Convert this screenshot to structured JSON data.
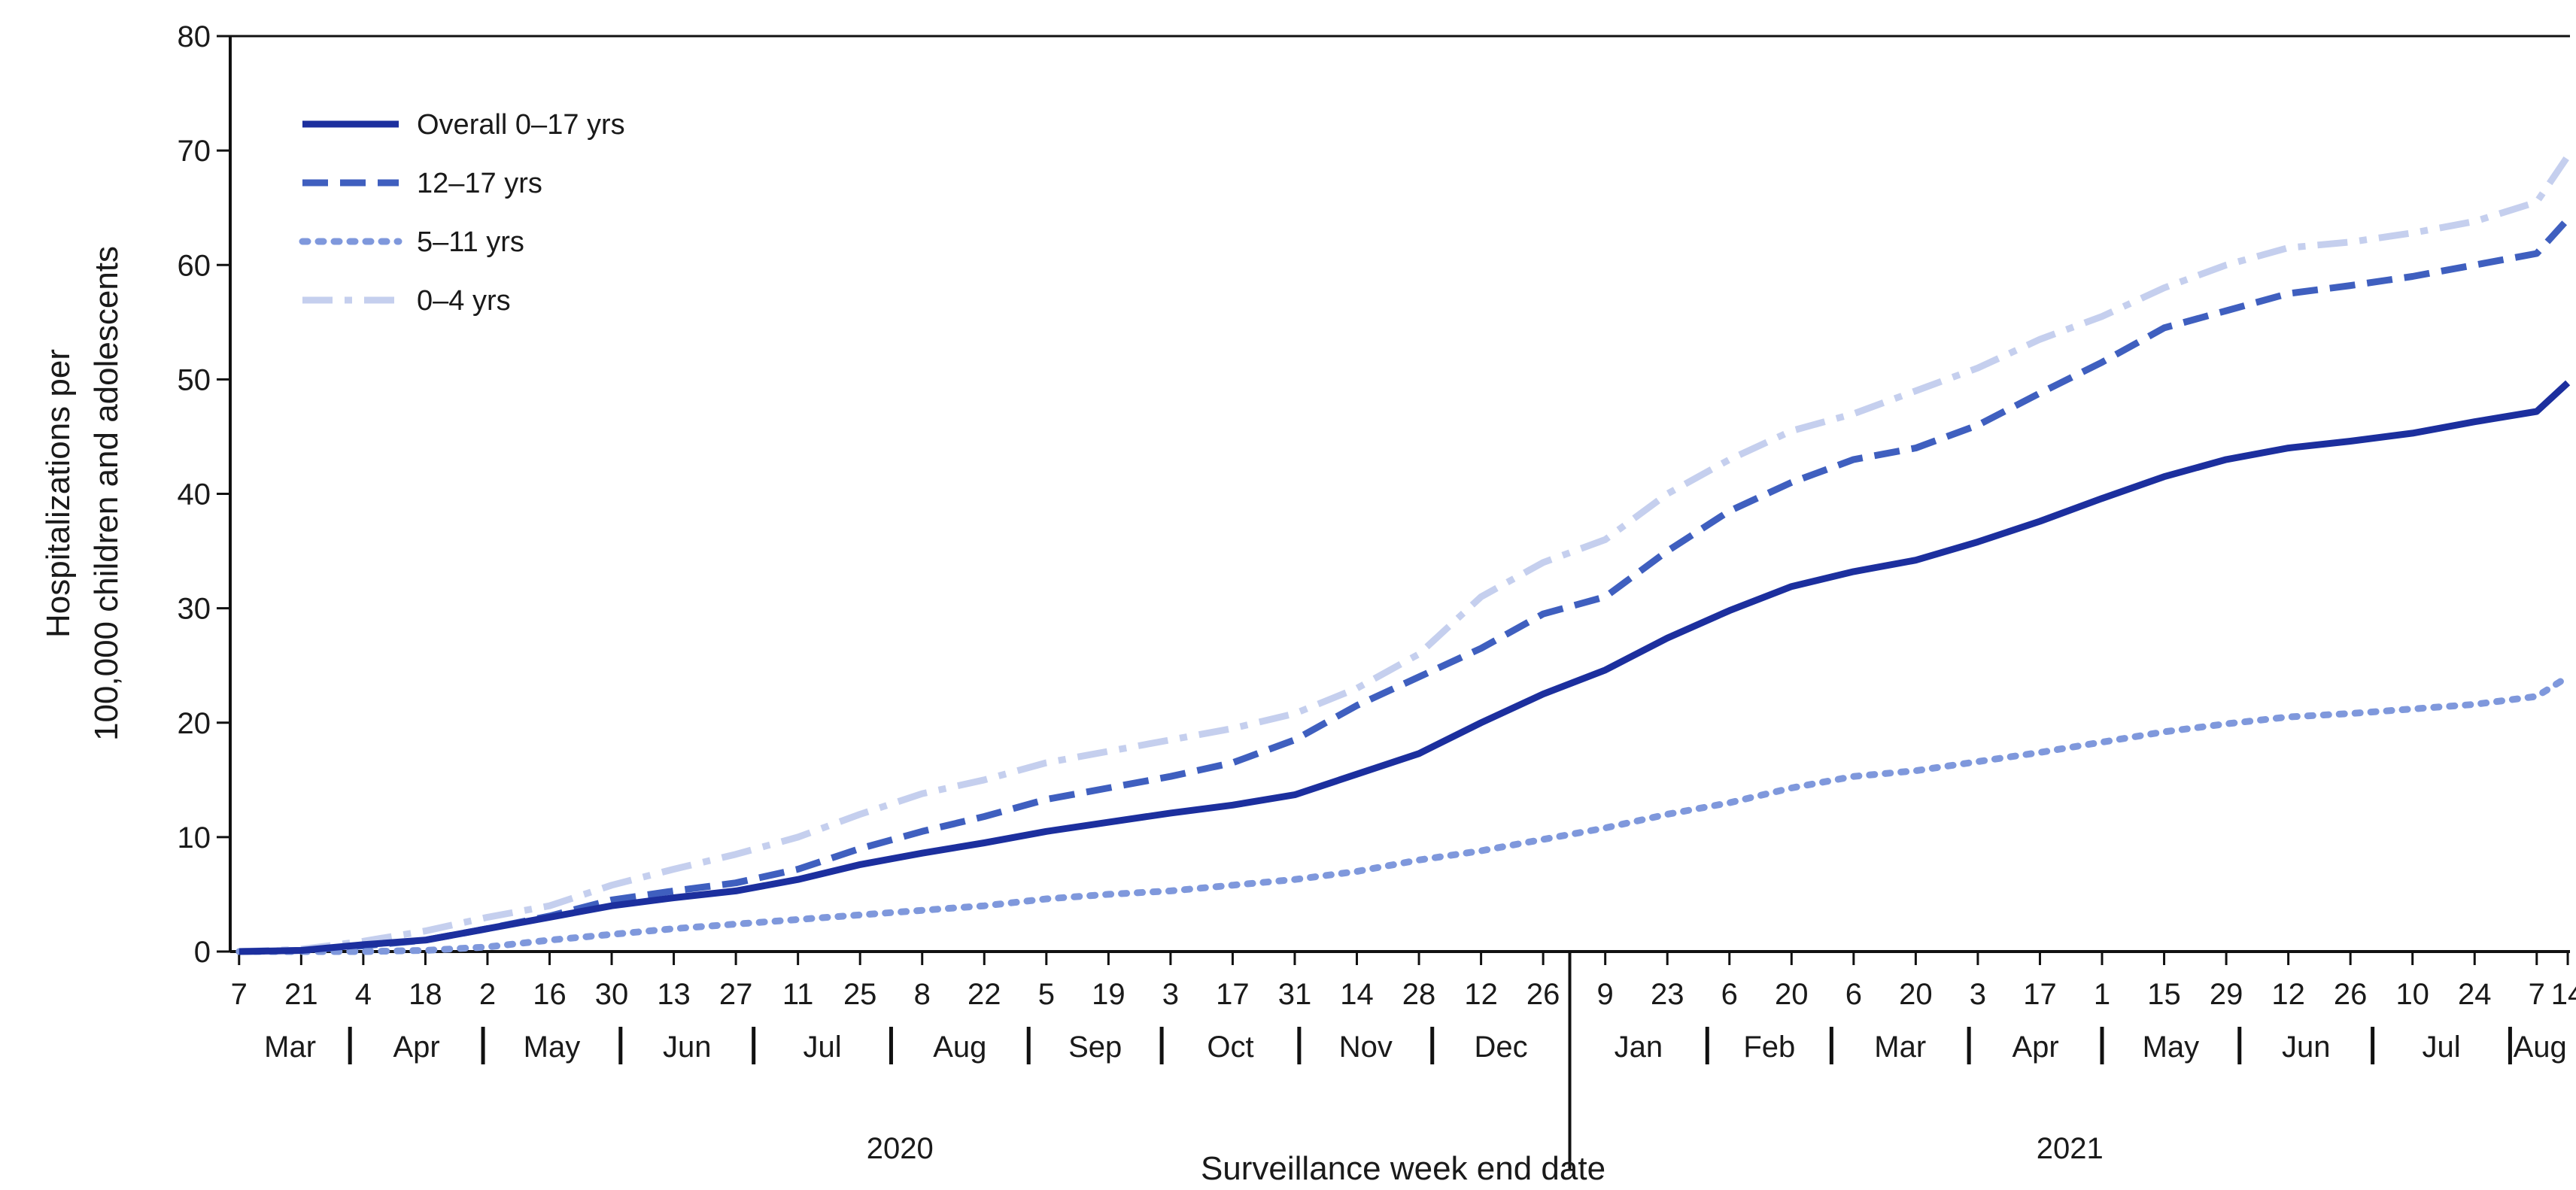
{
  "chart_data": {
    "type": "line",
    "title": "",
    "xlabel": "Surveillance week end date",
    "ylabel_lines": [
      "Hospitalizations per",
      "100,000 children and adolescents"
    ],
    "ylim": [
      0,
      80
    ],
    "yticks": [
      0,
      10,
      20,
      30,
      40,
      50,
      60,
      70,
      80
    ],
    "grid": false,
    "legend_placement": "top-left",
    "x_dates": [
      "2020-03-07",
      "2020-03-21",
      "2020-04-04",
      "2020-04-18",
      "2020-05-02",
      "2020-05-16",
      "2020-05-30",
      "2020-06-13",
      "2020-06-27",
      "2020-07-11",
      "2020-07-25",
      "2020-08-08",
      "2020-08-22",
      "2020-09-05",
      "2020-09-19",
      "2020-10-03",
      "2020-10-17",
      "2020-10-31",
      "2020-11-14",
      "2020-11-28",
      "2020-12-12",
      "2020-12-26",
      "2021-01-09",
      "2021-01-23",
      "2021-02-06",
      "2021-02-20",
      "2021-03-06",
      "2021-03-20",
      "2021-04-03",
      "2021-04-17",
      "2021-05-01",
      "2021-05-15",
      "2021-05-29",
      "2021-06-12",
      "2021-06-26",
      "2021-07-10",
      "2021-07-24",
      "2021-08-07",
      "2021-08-14"
    ],
    "tick_day_labels": [
      "7",
      "21",
      "4",
      "18",
      "2",
      "16",
      "30",
      "13",
      "27",
      "11",
      "25",
      "8",
      "22",
      "5",
      "19",
      "3",
      "17",
      "31",
      "14",
      "28",
      "12",
      "26",
      "9",
      "23",
      "6",
      "20",
      "6",
      "20",
      "3",
      "17",
      "1",
      "15",
      "29",
      "12",
      "26",
      "10",
      "24",
      "7",
      "14"
    ],
    "months": [
      {
        "label": "Mar",
        "start": "2020-03-01",
        "end": "2020-03-31"
      },
      {
        "label": "Apr",
        "start": "2020-04-01",
        "end": "2020-04-30"
      },
      {
        "label": "May",
        "start": "2020-05-01",
        "end": "2020-05-31"
      },
      {
        "label": "Jun",
        "start": "2020-06-01",
        "end": "2020-06-30"
      },
      {
        "label": "Jul",
        "start": "2020-07-01",
        "end": "2020-07-31"
      },
      {
        "label": "Aug",
        "start": "2020-08-01",
        "end": "2020-08-31"
      },
      {
        "label": "Sep",
        "start": "2020-09-01",
        "end": "2020-09-30"
      },
      {
        "label": "Oct",
        "start": "2020-10-01",
        "end": "2020-10-31"
      },
      {
        "label": "Nov",
        "start": "2020-11-01",
        "end": "2020-11-30"
      },
      {
        "label": "Dec",
        "start": "2020-12-01",
        "end": "2020-12-31"
      },
      {
        "label": "Jan",
        "start": "2021-01-01",
        "end": "2021-01-31"
      },
      {
        "label": "Feb",
        "start": "2021-02-01",
        "end": "2021-02-28"
      },
      {
        "label": "Mar",
        "start": "2021-03-01",
        "end": "2021-03-31"
      },
      {
        "label": "Apr",
        "start": "2021-04-01",
        "end": "2021-04-30"
      },
      {
        "label": "May",
        "start": "2021-05-01",
        "end": "2021-05-31"
      },
      {
        "label": "Jun",
        "start": "2021-06-01",
        "end": "2021-06-30"
      },
      {
        "label": "Jul",
        "start": "2021-07-01",
        "end": "2021-07-31"
      },
      {
        "label": "Aug",
        "start": "2021-08-01",
        "end": "2021-08-14"
      }
    ],
    "years": [
      {
        "label": "2020",
        "start": "2020-03-01",
        "end": "2020-12-31"
      },
      {
        "label": "2021",
        "start": "2021-01-01",
        "end": "2021-08-14"
      }
    ],
    "series": [
      {
        "name": "Overall 0–17 yrs",
        "style": "solid",
        "color": "#1c2f9e",
        "values": [
          0,
          0.1,
          0.6,
          1.0,
          2.0,
          3.0,
          4.0,
          4.7,
          5.3,
          6.3,
          7.6,
          8.6,
          9.5,
          10.5,
          11.3,
          12.1,
          12.8,
          13.7,
          15.5,
          17.3,
          20.0,
          22.5,
          24.6,
          27.4,
          29.8,
          31.9,
          33.2,
          34.2,
          35.8,
          37.6,
          39.6,
          41.5,
          43.0,
          44.0,
          44.6,
          45.3,
          46.3,
          47.2,
          49.7
        ]
      },
      {
        "name": "12–17 yrs",
        "style": "dashed",
        "color": "#3f5fbf",
        "values": [
          0,
          0.1,
          0.5,
          1.0,
          2.0,
          3.1,
          4.5,
          5.3,
          6.0,
          7.2,
          9.0,
          10.5,
          11.8,
          13.3,
          14.3,
          15.3,
          16.5,
          18.5,
          21.5,
          24.0,
          26.5,
          29.5,
          31.0,
          35.0,
          38.5,
          41.0,
          43.0,
          44.0,
          46.0,
          48.8,
          51.5,
          54.5,
          56.0,
          57.5,
          58.2,
          59.0,
          60.0,
          61.0,
          64.0
        ]
      },
      {
        "name": "5–11 yrs",
        "style": "dotted",
        "color": "#7f98dc",
        "values": [
          0,
          0,
          0,
          0.1,
          0.4,
          1.0,
          1.5,
          2.0,
          2.4,
          2.8,
          3.2,
          3.6,
          4.0,
          4.6,
          5.0,
          5.3,
          5.8,
          6.3,
          7.0,
          8.0,
          8.8,
          9.8,
          10.8,
          12.0,
          13.0,
          14.3,
          15.3,
          15.8,
          16.6,
          17.4,
          18.3,
          19.2,
          19.9,
          20.5,
          20.8,
          21.2,
          21.6,
          22.3,
          24.0
        ]
      },
      {
        "name": "0–4 yrs",
        "style": "dashdot",
        "color": "#c5cfee",
        "values": [
          0,
          0.2,
          0.9,
          1.8,
          3.0,
          4.0,
          5.8,
          7.2,
          8.5,
          10.0,
          12.0,
          13.8,
          15.0,
          16.5,
          17.5,
          18.5,
          19.5,
          20.8,
          23.0,
          26.0,
          31.0,
          34.0,
          36.0,
          40.0,
          43.0,
          45.5,
          47.0,
          49.0,
          51.0,
          53.5,
          55.5,
          58.0,
          60.0,
          61.5,
          62.0,
          62.8,
          63.8,
          65.5,
          69.5
        ]
      }
    ]
  }
}
